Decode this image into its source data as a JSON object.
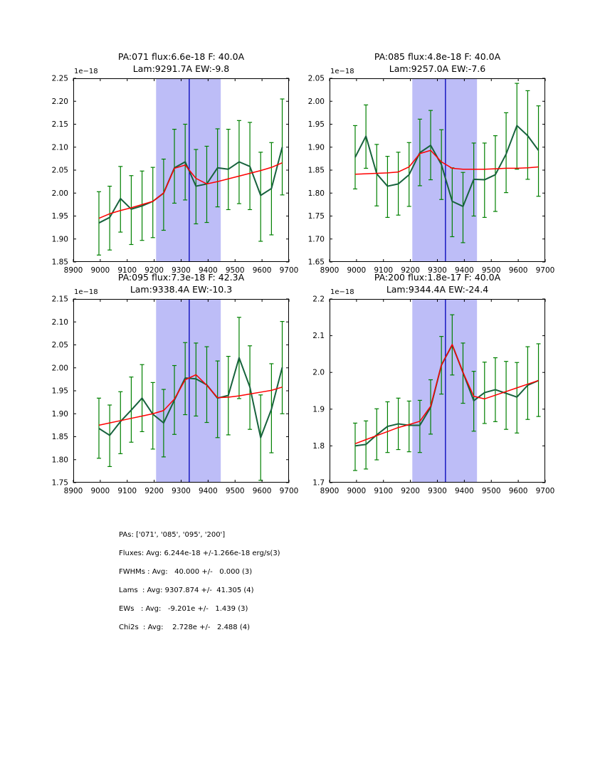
{
  "summary": {
    "lines": [
      "PAs: ['071', '085', '095', '200']",
      "Fluxes: Avg: 6.244e-18 +/-1.266e-18 erg/s(3)",
      "FWHMs : Avg:   40.000 +/-   0.000 (3)",
      "Lams  : Avg: 9307.874 +/-  41.305 (4)",
      "EWs   : Avg:   -9.201e +/-   1.439 (3)",
      "Chi2s  : Avg:    2.728e +/-   2.488 (4)"
    ]
  },
  "chart_data": {
    "type": "line",
    "xlabel": "",
    "ylabel": "",
    "xlim": [
      8900,
      9700
    ],
    "x_tick_step": 100,
    "offset_label": "1e−18",
    "band": [
      9207,
      9447
    ],
    "vline": 9330,
    "grid": false,
    "colors": {
      "band": "#bdbdf7",
      "vline": "#0000b8",
      "errorbar": "#008000",
      "spectrum": "#17623d",
      "fit": "#ff0000",
      "frame": "#000000"
    },
    "x": [
      8995,
      9035,
      9075,
      9115,
      9155,
      9195,
      9235,
      9275,
      9315,
      9355,
      9395,
      9435,
      9475,
      9515,
      9555,
      9595,
      9635,
      9675
    ],
    "subplots": [
      {
        "title1": "PA:071 flux:6.6e-18 F: 40.0A",
        "title2": "Lam:9291.7A EW:-9.8",
        "pa": "071",
        "flux": "6.6e-18",
        "fwhm": "40.0A",
        "lam": "9291.7A",
        "ew": "-9.8",
        "ylim": [
          1.85,
          2.25
        ],
        "ytick_step": 0.05,
        "ytick_decimals": 2,
        "green": [
          1.935,
          1.947,
          1.988,
          1.965,
          1.972,
          1.982,
          2.0,
          2.055,
          2.068,
          2.015,
          2.02,
          2.055,
          2.052,
          2.068,
          2.058,
          1.995,
          2.01,
          2.1
        ],
        "err_lo": [
          1.865,
          1.876,
          1.915,
          1.888,
          1.897,
          1.903,
          1.919,
          1.978,
          1.985,
          1.933,
          1.936,
          1.97,
          1.964,
          1.977,
          1.964,
          1.895,
          1.909,
          1.996
        ],
        "err_hi": [
          2.003,
          2.015,
          2.058,
          2.038,
          2.048,
          2.056,
          2.074,
          2.139,
          2.15,
          2.095,
          2.102,
          2.14,
          2.139,
          2.158,
          2.154,
          2.089,
          2.11,
          2.205
        ],
        "red": [
          1.945,
          1.955,
          1.962,
          1.968,
          1.975,
          1.982,
          2.0,
          2.054,
          2.061,
          2.032,
          2.02,
          2.025,
          2.031,
          2.037,
          2.043,
          2.049,
          2.056,
          2.066
        ]
      },
      {
        "title1": "PA:085 flux:4.8e-18 F: 40.0A",
        "title2": "Lam:9257.0A EW:-7.6",
        "pa": "085",
        "flux": "4.8e-18",
        "fwhm": "40.0A",
        "lam": "9257.0A",
        "ew": "-7.6",
        "ylim": [
          1.65,
          2.05
        ],
        "ytick_step": 0.05,
        "ytick_decimals": 2,
        "green": [
          1.878,
          1.924,
          1.842,
          1.815,
          1.82,
          1.84,
          1.888,
          1.904,
          1.862,
          1.782,
          1.771,
          1.83,
          1.829,
          1.84,
          1.885,
          1.947,
          1.925,
          1.893
        ],
        "err_lo": [
          1.809,
          1.854,
          1.772,
          1.747,
          1.752,
          1.771,
          1.816,
          1.829,
          1.786,
          1.705,
          1.692,
          1.75,
          1.747,
          1.76,
          1.801,
          1.852,
          1.83,
          1.793
        ],
        "err_hi": [
          1.947,
          1.992,
          1.906,
          1.88,
          1.889,
          1.91,
          1.961,
          1.98,
          1.938,
          1.855,
          1.845,
          1.909,
          1.909,
          1.925,
          1.975,
          2.039,
          2.023,
          1.99
        ],
        "red": [
          1.841,
          1.842,
          1.843,
          1.844,
          1.846,
          1.857,
          1.886,
          1.893,
          1.868,
          1.854,
          1.852,
          1.852,
          1.852,
          1.853,
          1.854,
          1.854,
          1.855,
          1.857
        ]
      },
      {
        "title1": "PA:095 flux:7.3e-18 F: 42.3A",
        "title2": "Lam:9338.4A EW:-10.3",
        "pa": "095",
        "flux": "7.3e-18",
        "fwhm": "42.3A",
        "lam": "9338.4A",
        "ew": "-10.3",
        "ylim": [
          1.75,
          2.15
        ],
        "ytick_step": 0.05,
        "ytick_decimals": 2,
        "green": [
          1.868,
          1.853,
          1.883,
          1.908,
          1.934,
          1.899,
          1.88,
          1.93,
          1.978,
          1.976,
          1.963,
          1.934,
          1.94,
          2.022,
          1.958,
          1.848,
          1.91,
          2.001
        ],
        "err_lo": [
          1.803,
          1.785,
          1.813,
          1.838,
          1.861,
          1.823,
          1.806,
          1.855,
          1.898,
          1.895,
          1.881,
          1.848,
          1.854,
          1.933,
          1.866,
          1.755,
          1.815,
          1.9
        ],
        "err_hi": [
          1.934,
          1.919,
          1.948,
          1.98,
          2.007,
          1.968,
          1.953,
          2.005,
          2.055,
          2.054,
          2.046,
          2.015,
          2.025,
          2.11,
          2.048,
          1.941,
          2.009,
          2.101
        ],
        "red": [
          1.875,
          1.88,
          1.885,
          1.89,
          1.895,
          1.9,
          1.907,
          1.932,
          1.974,
          1.985,
          1.962,
          1.935,
          1.936,
          1.939,
          1.943,
          1.947,
          1.951,
          1.958
        ]
      },
      {
        "title1": "PA:200 flux:1.8e-17 F: 40.0A",
        "title2": "Lam:9344.4A EW:-24.4",
        "pa": "200",
        "flux": "1.8e-17",
        "fwhm": "40.0A",
        "lam": "9344.4A",
        "ew": "-24.4",
        "ylim": [
          1.7,
          2.2
        ],
        "ytick_step": 0.1,
        "ytick_decimals": 1,
        "green": [
          1.8,
          1.804,
          1.83,
          1.853,
          1.86,
          1.856,
          1.856,
          1.905,
          2.02,
          2.075,
          2.0,
          1.923,
          1.945,
          1.953,
          1.943,
          1.933,
          1.965,
          1.978
        ],
        "err_lo": [
          1.733,
          1.737,
          1.762,
          1.782,
          1.79,
          1.784,
          1.782,
          1.832,
          1.941,
          1.993,
          1.916,
          1.84,
          1.861,
          1.866,
          1.845,
          1.835,
          1.872,
          1.88
        ],
        "err_hi": [
          1.862,
          1.868,
          1.901,
          1.92,
          1.93,
          1.922,
          1.924,
          1.98,
          2.098,
          2.157,
          2.08,
          2.003,
          2.028,
          2.04,
          2.03,
          2.027,
          2.07,
          2.078
        ],
        "red": [
          1.806,
          1.817,
          1.828,
          1.839,
          1.85,
          1.858,
          1.867,
          1.908,
          2.02,
          2.076,
          2.0,
          1.935,
          1.928,
          1.938,
          1.948,
          1.958,
          1.968,
          1.978
        ]
      }
    ]
  }
}
